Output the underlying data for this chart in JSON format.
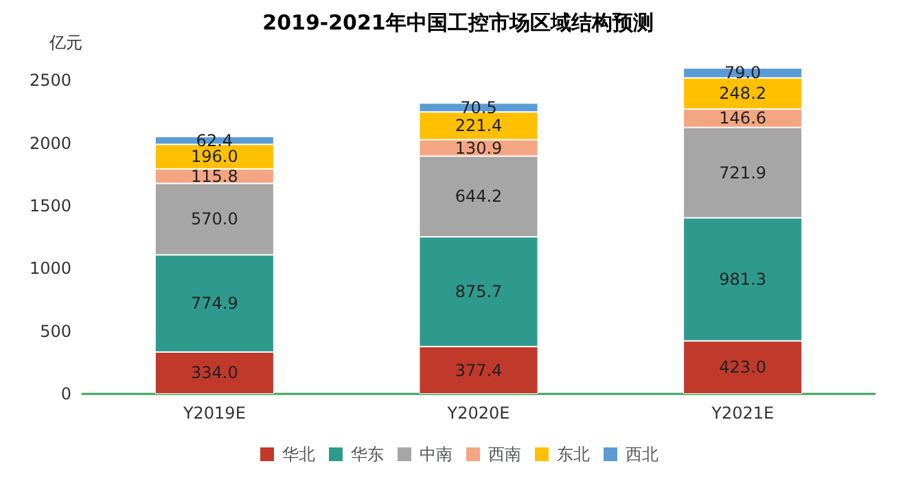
{
  "chart_data": {
    "type": "bar",
    "title": "2019-2021年中国工控市场区域结构预测",
    "ylabel": "亿元",
    "categories": [
      "Y2019E",
      "Y2020E",
      "Y2021E"
    ],
    "stacked": true,
    "legend": "bottom",
    "grid": false,
    "ylim": [
      0,
      2650
    ],
    "yticks": [
      0,
      500,
      1000,
      1500,
      2000,
      2500
    ],
    "series": [
      {
        "name": "华北",
        "color": "#c0392b",
        "values": [
          334,
          377.4,
          423
        ],
        "value_labels": [
          "334.0",
          "377.4",
          "423.0"
        ]
      },
      {
        "name": "华东",
        "color": "#2e9a8e",
        "values": [
          774.9,
          875.7,
          981.3
        ],
        "value_labels": [
          "774.9",
          "875.7",
          "981.3"
        ]
      },
      {
        "name": "中南",
        "color": "#a6a6a6",
        "values": [
          570,
          644.2,
          721.9
        ],
        "value_labels": [
          "570.0",
          "644.2",
          "721.9"
        ]
      },
      {
        "name": "西南",
        "color": "#f4a582",
        "values": [
          115.8,
          130.9,
          146.6
        ],
        "value_labels": [
          "115.8",
          "130.9",
          "146.6"
        ]
      },
      {
        "name": "东北",
        "color": "#ffc000",
        "values": [
          196,
          221.4,
          248.2
        ],
        "value_labels": [
          "196.0",
          "221.4",
          "248.2"
        ]
      },
      {
        "name": "西北",
        "color": "#5b9bd5",
        "values": [
          62.4,
          70.5,
          79
        ],
        "value_labels": [
          "62.4",
          "70.5",
          "79.0"
        ]
      }
    ]
  }
}
